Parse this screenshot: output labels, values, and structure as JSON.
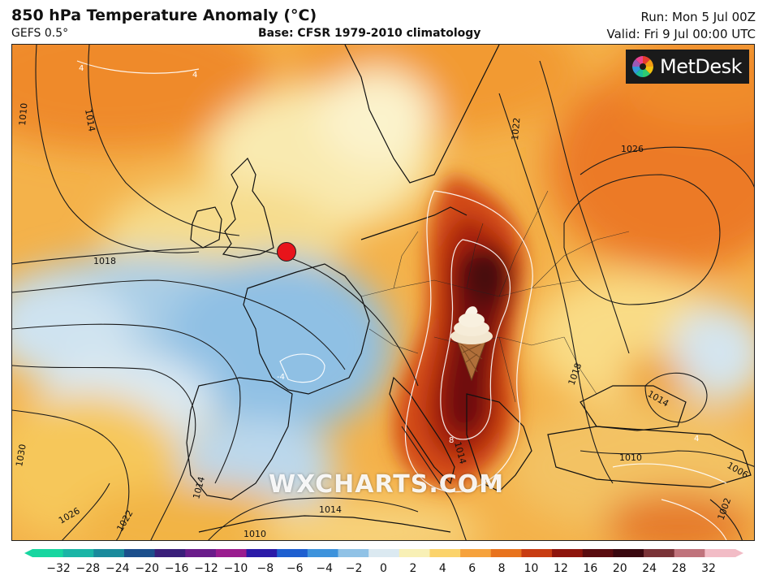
{
  "header": {
    "title": "850 hPa Temperature Anomaly (°C)",
    "model": "GEFS 0.5°",
    "base": "Base: CFSR 1979-2010 climatology",
    "run": "Run: Mon 5 Jul 00Z",
    "valid": "Valid: Fri 9 Jul 00:00 UTC"
  },
  "logo": {
    "text": "MetDesk"
  },
  "watermark": {
    "text": "WXCHARTS.COM"
  },
  "isobars": {
    "labels": [
      "1010",
      "1014",
      "1018",
      "1026",
      "1030",
      "1026",
      "1022",
      "1014",
      "1014",
      "1010",
      "1010",
      "1018",
      "1014",
      "1002",
      "1006",
      "1014",
      "1022"
    ]
  },
  "anomaly_labels": [
    "4",
    "4",
    "4",
    "-4",
    "8"
  ],
  "colorbar": {
    "ticks": [
      "−32",
      "−28",
      "−24",
      "−20",
      "−16",
      "−12",
      "−10",
      "−8",
      "−6",
      "−4",
      "−2",
      "0",
      "2",
      "4",
      "6",
      "8",
      "10",
      "12",
      "16",
      "20",
      "24",
      "28",
      "32"
    ],
    "colors": [
      "#17d6a0",
      "#1bb5a6",
      "#1a8a9c",
      "#1c4f8c",
      "#3a1f7a",
      "#6a1c8a",
      "#9a1c8f",
      "#2b1aa8",
      "#1e5fd0",
      "#3e93dc",
      "#90c2e6",
      "#dbe9f1",
      "#f8f0b6",
      "#fbd36b",
      "#f6a23c",
      "#e8731e",
      "#c83c12",
      "#8e150d",
      "#5a0c10",
      "#3a0810",
      "#7a3338",
      "#c0737c",
      "#f2bcc6"
    ]
  },
  "markers": {
    "location_marker": "red-dot",
    "hotspot_icon": "ice-cream-icon"
  }
}
